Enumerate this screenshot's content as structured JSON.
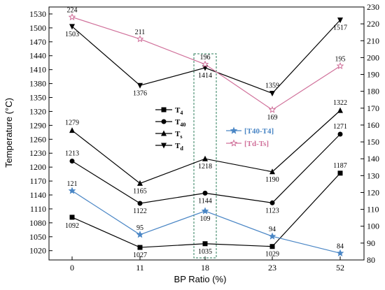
{
  "chart_data": {
    "type": "line",
    "xlabel": "BP Ratio (%)",
    "ylabel": "Temperature (°C)",
    "categories": [
      "0",
      "11",
      "18",
      "23",
      "52"
    ],
    "ylim_left": [
      1000,
      1545
    ],
    "yticks_left": [
      1020,
      1050,
      1080,
      1110,
      1140,
      1170,
      1200,
      1230,
      1260,
      1290,
      1320,
      1350,
      1380,
      1410,
      1440,
      1470,
      1500,
      1530
    ],
    "ylim_right": [
      80,
      230
    ],
    "yticks_right": [
      80,
      90,
      100,
      110,
      120,
      130,
      140,
      150,
      160,
      170,
      180,
      190,
      200,
      210,
      220,
      230
    ],
    "series_left": [
      {
        "name": "T4",
        "base": "T",
        "sub": "4",
        "marker": "square",
        "color": "#000000",
        "values": [
          1092,
          1027,
          1035,
          1029,
          1187
        ],
        "labels": [
          "1092",
          "1027",
          "1035",
          "1029",
          "1187"
        ]
      },
      {
        "name": "T40",
        "base": "T",
        "sub": "40",
        "marker": "circle",
        "color": "#000000",
        "values": [
          1213,
          1122,
          1144,
          1123,
          1271
        ],
        "labels": [
          "1213",
          "1122",
          "1144",
          "1123",
          "1271"
        ]
      },
      {
        "name": "Ts",
        "base": "T",
        "sub": "s",
        "marker": "triangle-up",
        "color": "#000000",
        "values": [
          1279,
          1165,
          1218,
          1190,
          1322
        ],
        "labels": [
          "1279",
          "1165",
          "1218",
          "1190",
          "1322"
        ]
      },
      {
        "name": "Td",
        "base": "T",
        "sub": "d",
        "marker": "triangle-down",
        "color": "#000000",
        "values": [
          1503,
          1376,
          1414,
          1359,
          1517
        ],
        "labels": [
          "1503",
          "1376",
          "1414",
          "1359",
          "1517"
        ]
      }
    ],
    "series_right": [
      {
        "name": "[T40-T4]",
        "marker": "star",
        "color": "#4a86c5",
        "values": [
          121,
          95,
          109,
          94,
          84
        ],
        "labels": [
          "121",
          "95",
          "109",
          "94",
          "84"
        ]
      },
      {
        "name": "[Td-Ts]",
        "marker": "star-open",
        "color": "#d0709a",
        "values": [
          224,
          211,
          196,
          169,
          195
        ],
        "labels": [
          "224",
          "211",
          "196",
          "169",
          "195"
        ]
      }
    ],
    "highlight_category": "18",
    "grid": false
  }
}
